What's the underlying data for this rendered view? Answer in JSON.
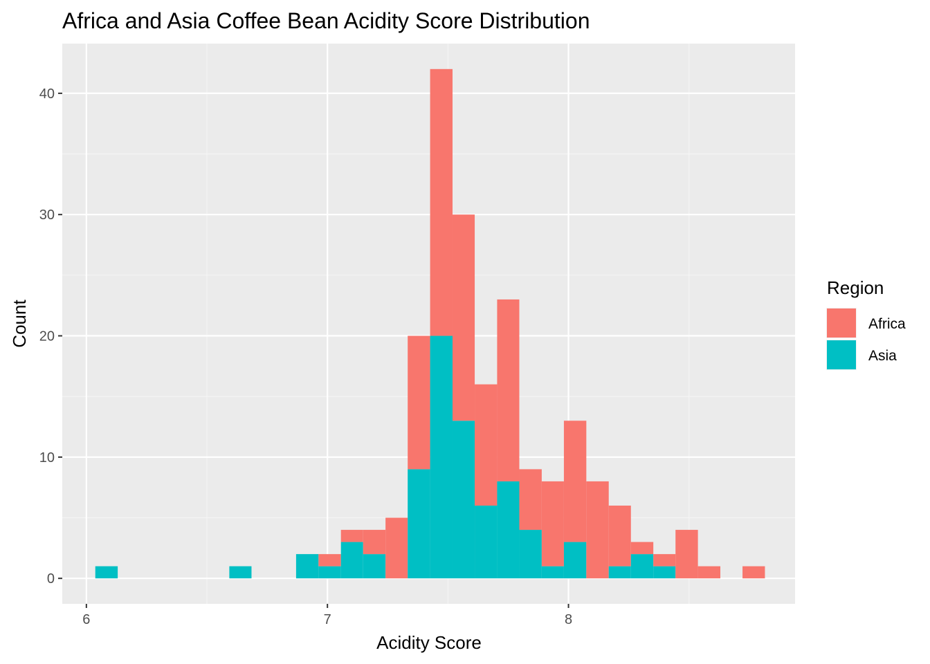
{
  "chart_data": {
    "type": "bar",
    "subtype": "stacked-histogram",
    "title": "Africa and Asia Coffee Bean Acidity Score Distribution",
    "xlabel": "Acidity Score",
    "ylabel": "Count",
    "xlim": [
      5.9,
      8.94
    ],
    "ylim": [
      -2.1,
      44.1
    ],
    "x_ticks": [
      6,
      7,
      8
    ],
    "y_ticks": [
      0,
      10,
      20,
      30,
      40
    ],
    "grid": true,
    "legend": {
      "title": "Region",
      "position": "right"
    },
    "bin_width": 0.0926,
    "bins": [
      {
        "start": 6.037,
        "end": 6.13,
        "Africa": 0,
        "Asia": 1
      },
      {
        "start": 6.593,
        "end": 6.685,
        "Africa": 0,
        "Asia": 1
      },
      {
        "start": 6.87,
        "end": 6.963,
        "Africa": 0,
        "Asia": 2
      },
      {
        "start": 6.963,
        "end": 7.056,
        "Africa": 1,
        "Asia": 1
      },
      {
        "start": 7.056,
        "end": 7.148,
        "Africa": 1,
        "Asia": 3
      },
      {
        "start": 7.148,
        "end": 7.241,
        "Africa": 2,
        "Asia": 2
      },
      {
        "start": 7.241,
        "end": 7.333,
        "Africa": 5,
        "Asia": 0
      },
      {
        "start": 7.333,
        "end": 7.426,
        "Africa": 11,
        "Asia": 9
      },
      {
        "start": 7.426,
        "end": 7.519,
        "Africa": 22,
        "Asia": 20
      },
      {
        "start": 7.519,
        "end": 7.611,
        "Africa": 17,
        "Asia": 13
      },
      {
        "start": 7.611,
        "end": 7.704,
        "Africa": 10,
        "Asia": 6
      },
      {
        "start": 7.704,
        "end": 7.796,
        "Africa": 15,
        "Asia": 8
      },
      {
        "start": 7.796,
        "end": 7.889,
        "Africa": 5,
        "Asia": 4
      },
      {
        "start": 7.889,
        "end": 7.981,
        "Africa": 7,
        "Asia": 1
      },
      {
        "start": 7.981,
        "end": 8.074,
        "Africa": 10,
        "Asia": 3
      },
      {
        "start": 8.074,
        "end": 8.167,
        "Africa": 8,
        "Asia": 0
      },
      {
        "start": 8.167,
        "end": 8.259,
        "Africa": 5,
        "Asia": 1
      },
      {
        "start": 8.259,
        "end": 8.352,
        "Africa": 1,
        "Asia": 2
      },
      {
        "start": 8.352,
        "end": 8.444,
        "Africa": 1,
        "Asia": 1
      },
      {
        "start": 8.444,
        "end": 8.537,
        "Africa": 4,
        "Asia": 0
      },
      {
        "start": 8.537,
        "end": 8.63,
        "Africa": 1,
        "Asia": 0
      },
      {
        "start": 8.722,
        "end": 8.815,
        "Africa": 1,
        "Asia": 0
      }
    ],
    "series": [
      {
        "name": "Africa",
        "color": "#F8766D"
      },
      {
        "name": "Asia",
        "color": "#00BFC4"
      }
    ]
  },
  "colors": {
    "panel_background": "#EBEBEB",
    "grid_major": "#FFFFFF",
    "grid_minor": "#F5F5F5"
  }
}
